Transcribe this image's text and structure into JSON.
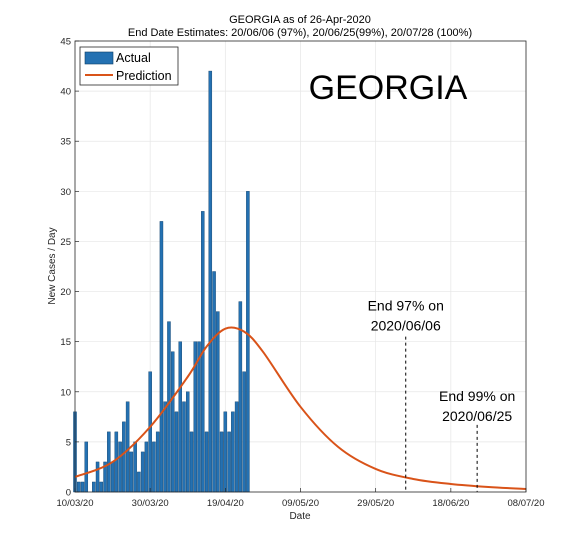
{
  "chart_data": {
    "type": "bar",
    "title": "GEORGIA as of 26-Apr-2020",
    "subtitle": "End Date Estimates: 20/06/06 (97%), 20/06/25(99%), 20/07/28 (100%)",
    "xlabel": "Date",
    "ylabel": "New Cases / Day",
    "ylim": [
      0,
      45
    ],
    "xlim": [
      "2020-03-10",
      "2020-07-08"
    ],
    "yticks": [
      0,
      5,
      10,
      15,
      20,
      25,
      30,
      35,
      40,
      45
    ],
    "xticks": [
      "10/03/20",
      "30/03/20",
      "19/04/20",
      "09/05/20",
      "29/05/20",
      "18/06/20",
      "08/07/20"
    ],
    "grid": true,
    "legend_position": "top-left",
    "big_label": "GEORGIA",
    "colors": {
      "bars": "#2471b2",
      "bar_edge": "#0e3e66",
      "prediction": "#d95319",
      "grid": "#e6e6e6"
    },
    "series": [
      {
        "name": "Actual",
        "type": "bar",
        "start_date": "2020-03-10",
        "values": [
          8,
          1,
          1,
          5,
          0,
          1,
          3,
          1,
          3,
          6,
          3,
          6,
          5,
          7,
          9,
          4,
          5,
          2,
          4,
          5,
          12,
          5,
          6,
          27,
          9,
          17,
          14,
          8,
          15,
          9,
          10,
          6,
          15,
          15,
          28,
          6,
          42,
          22,
          18,
          6,
          8,
          6,
          8,
          9,
          19,
          12,
          30
        ]
      },
      {
        "name": "Prediction",
        "type": "line",
        "x": [
          "2020-03-10",
          "2020-03-20",
          "2020-03-30",
          "2020-04-09",
          "2020-04-14",
          "2020-04-19",
          "2020-04-24",
          "2020-04-29",
          "2020-05-09",
          "2020-05-19",
          "2020-05-29",
          "2020-06-08",
          "2020-06-18",
          "2020-06-28",
          "2020-07-08"
        ],
        "y": [
          1.5,
          3.0,
          6.5,
          11.5,
          14.5,
          16.3,
          16.0,
          14.0,
          8.5,
          4.5,
          2.3,
          1.3,
          0.8,
          0.5,
          0.3
        ]
      }
    ],
    "annotations": [
      {
        "date": "2020-06-06",
        "lines": [
          "End 97% on",
          "2020/06/06"
        ]
      },
      {
        "date": "2020-06-25",
        "lines": [
          "End 99% on",
          "2020/06/25"
        ]
      }
    ]
  }
}
